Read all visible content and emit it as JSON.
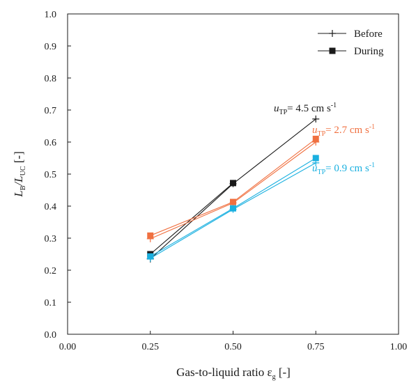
{
  "chart_data": {
    "type": "line",
    "title": "",
    "xlabel": "Gas-to-liquid ratio ε",
    "xlabel_sub": "g",
    "xlabel_unit": " [-]",
    "ylabel_main": "L",
    "ylabel_sub1": "B",
    "ylabel_slash": "/L",
    "ylabel_sub2": "UC",
    "ylabel_unit": " [-]",
    "xlim": [
      0.0,
      1.0
    ],
    "ylim": [
      0.0,
      1.0
    ],
    "x_ticks": [
      "0.00",
      "0.25",
      "0.50",
      "0.75",
      "1.00"
    ],
    "y_ticks": [
      "0.0",
      "0.1",
      "0.2",
      "0.3",
      "0.4",
      "0.5",
      "0.6",
      "0.7",
      "0.8",
      "0.9",
      "1.0"
    ],
    "x": [
      0.25,
      0.5,
      0.75
    ],
    "legend": {
      "position": "top-right",
      "entries": [
        {
          "label": "Before",
          "marker": "plus"
        },
        {
          "label": "During",
          "marker": "square"
        }
      ]
    },
    "groups": [
      {
        "label_var": "u",
        "label_sub": "TP",
        "label_value": "= 4.5 cm s",
        "label_sup": "-1",
        "color": "#1a1a1a",
        "before": [
          0.235,
          0.47,
          0.672
        ],
        "during": [
          0.25,
          0.472,
          null
        ]
      },
      {
        "label_var": "u",
        "label_sub": "TP",
        "label_value": "= 2.7 cm s",
        "label_sup": "-1",
        "color": "#f07040",
        "before": [
          0.298,
          0.41,
          0.6
        ],
        "during": [
          0.308,
          0.413,
          0.61
        ]
      },
      {
        "label_var": "u",
        "label_sub": "TP",
        "label_value": "= 0.9 cm s",
        "label_sup": "-1",
        "color": "#1ab0e0",
        "before": [
          0.237,
          0.39,
          0.535
        ],
        "during": [
          0.243,
          0.393,
          0.55
        ]
      }
    ]
  }
}
